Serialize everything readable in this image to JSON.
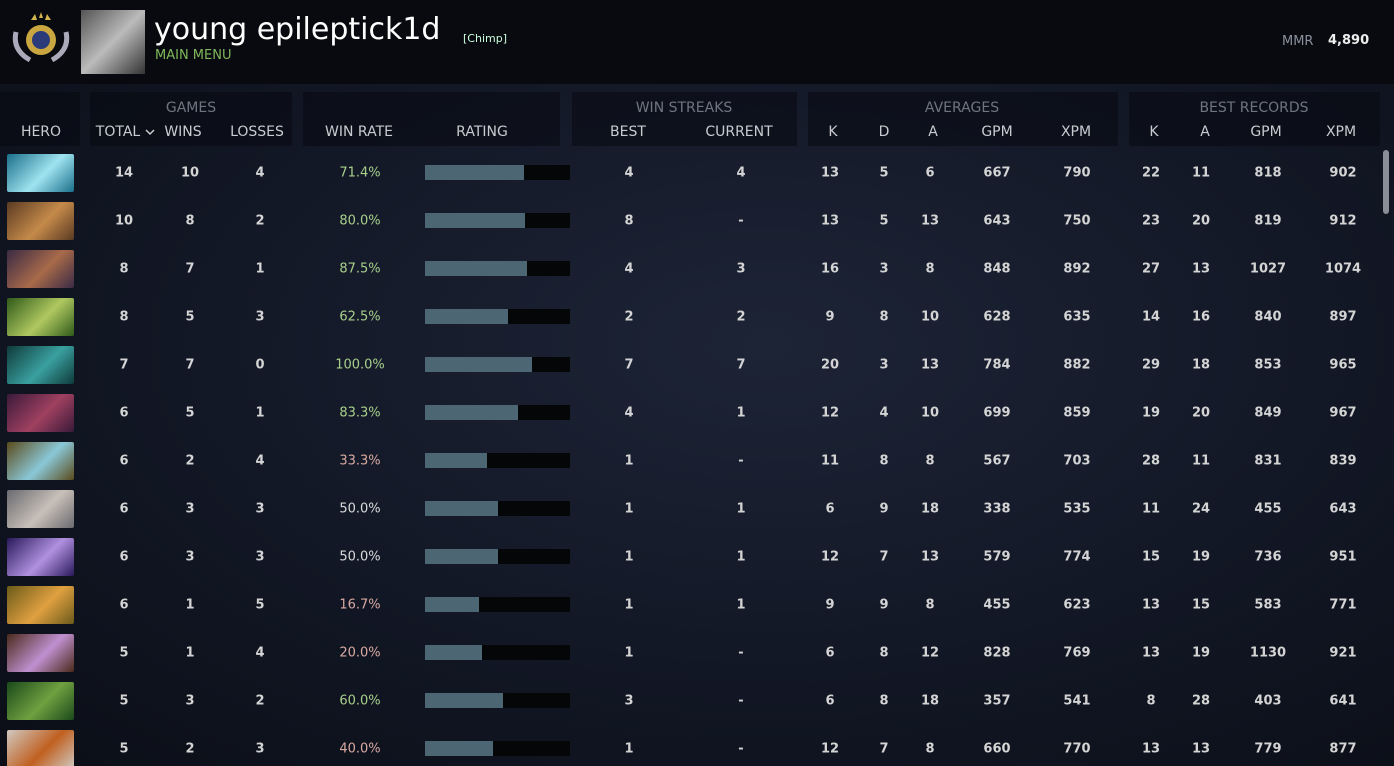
{
  "header": {
    "title": "young epileptick1d",
    "tag": "[Chimp]",
    "menu": "MAIN MENU",
    "mmr_label": "MMR",
    "mmr": "4,890"
  },
  "table": {
    "groups": [
      "GAMES",
      "WIN STREAKS",
      "AVERAGES",
      "BEST RECORDS"
    ],
    "columns": [
      "HERO",
      "TOTAL",
      "WINS",
      "LOSSES",
      "WIN RATE",
      "RATING",
      "BEST",
      "CURRENT",
      "K",
      "D",
      "A",
      "GPM",
      "XPM",
      "K",
      "A",
      "GPM",
      "XPM"
    ],
    "rating_lim": [
      0,
      100
    ],
    "rows": [
      {
        "cells": [
          14,
          10,
          4,
          "71.4%",
          4,
          4,
          13,
          5,
          6,
          667,
          790,
          22,
          11,
          818,
          902
        ],
        "rating": 68
      },
      {
        "cells": [
          10,
          8,
          2,
          "80.0%",
          8,
          "-",
          13,
          5,
          13,
          643,
          750,
          23,
          20,
          819,
          912
        ],
        "rating": 69
      },
      {
        "cells": [
          8,
          7,
          1,
          "87.5%",
          4,
          3,
          16,
          3,
          8,
          848,
          892,
          27,
          13,
          1027,
          1074
        ],
        "rating": 70
      },
      {
        "cells": [
          8,
          5,
          3,
          "62.5%",
          2,
          2,
          9,
          8,
          10,
          628,
          635,
          14,
          16,
          840,
          897
        ],
        "rating": 57
      },
      {
        "cells": [
          7,
          7,
          0,
          "100.0%",
          7,
          7,
          20,
          3,
          13,
          784,
          882,
          29,
          18,
          853,
          965
        ],
        "rating": 74
      },
      {
        "cells": [
          6,
          5,
          1,
          "83.3%",
          4,
          1,
          12,
          4,
          10,
          699,
          859,
          19,
          20,
          849,
          967
        ],
        "rating": 64
      },
      {
        "cells": [
          6,
          2,
          4,
          "33.3%",
          1,
          "-",
          11,
          8,
          8,
          567,
          703,
          28,
          11,
          831,
          839
        ],
        "rating": 43
      },
      {
        "cells": [
          6,
          3,
          3,
          "50.0%",
          1,
          1,
          6,
          9,
          18,
          338,
          535,
          11,
          24,
          455,
          643
        ],
        "rating": 50
      },
      {
        "cells": [
          6,
          3,
          3,
          "50.0%",
          1,
          1,
          12,
          7,
          13,
          579,
          774,
          15,
          19,
          736,
          951
        ],
        "rating": 50
      },
      {
        "cells": [
          6,
          1,
          5,
          "16.7%",
          1,
          1,
          9,
          9,
          8,
          455,
          623,
          13,
          15,
          583,
          771
        ],
        "rating": 37
      },
      {
        "cells": [
          5,
          1,
          4,
          "20.0%",
          1,
          "-",
          6,
          8,
          12,
          828,
          769,
          13,
          19,
          1130,
          921
        ],
        "rating": 39
      },
      {
        "cells": [
          5,
          3,
          2,
          "60.0%",
          3,
          "-",
          6,
          8,
          18,
          357,
          541,
          8,
          28,
          403,
          641
        ],
        "rating": 54
      },
      {
        "cells": [
          5,
          2,
          3,
          "40.0%",
          1,
          "-",
          12,
          7,
          8,
          660,
          770,
          13,
          13,
          779,
          877
        ],
        "rating": 47
      }
    ]
  }
}
